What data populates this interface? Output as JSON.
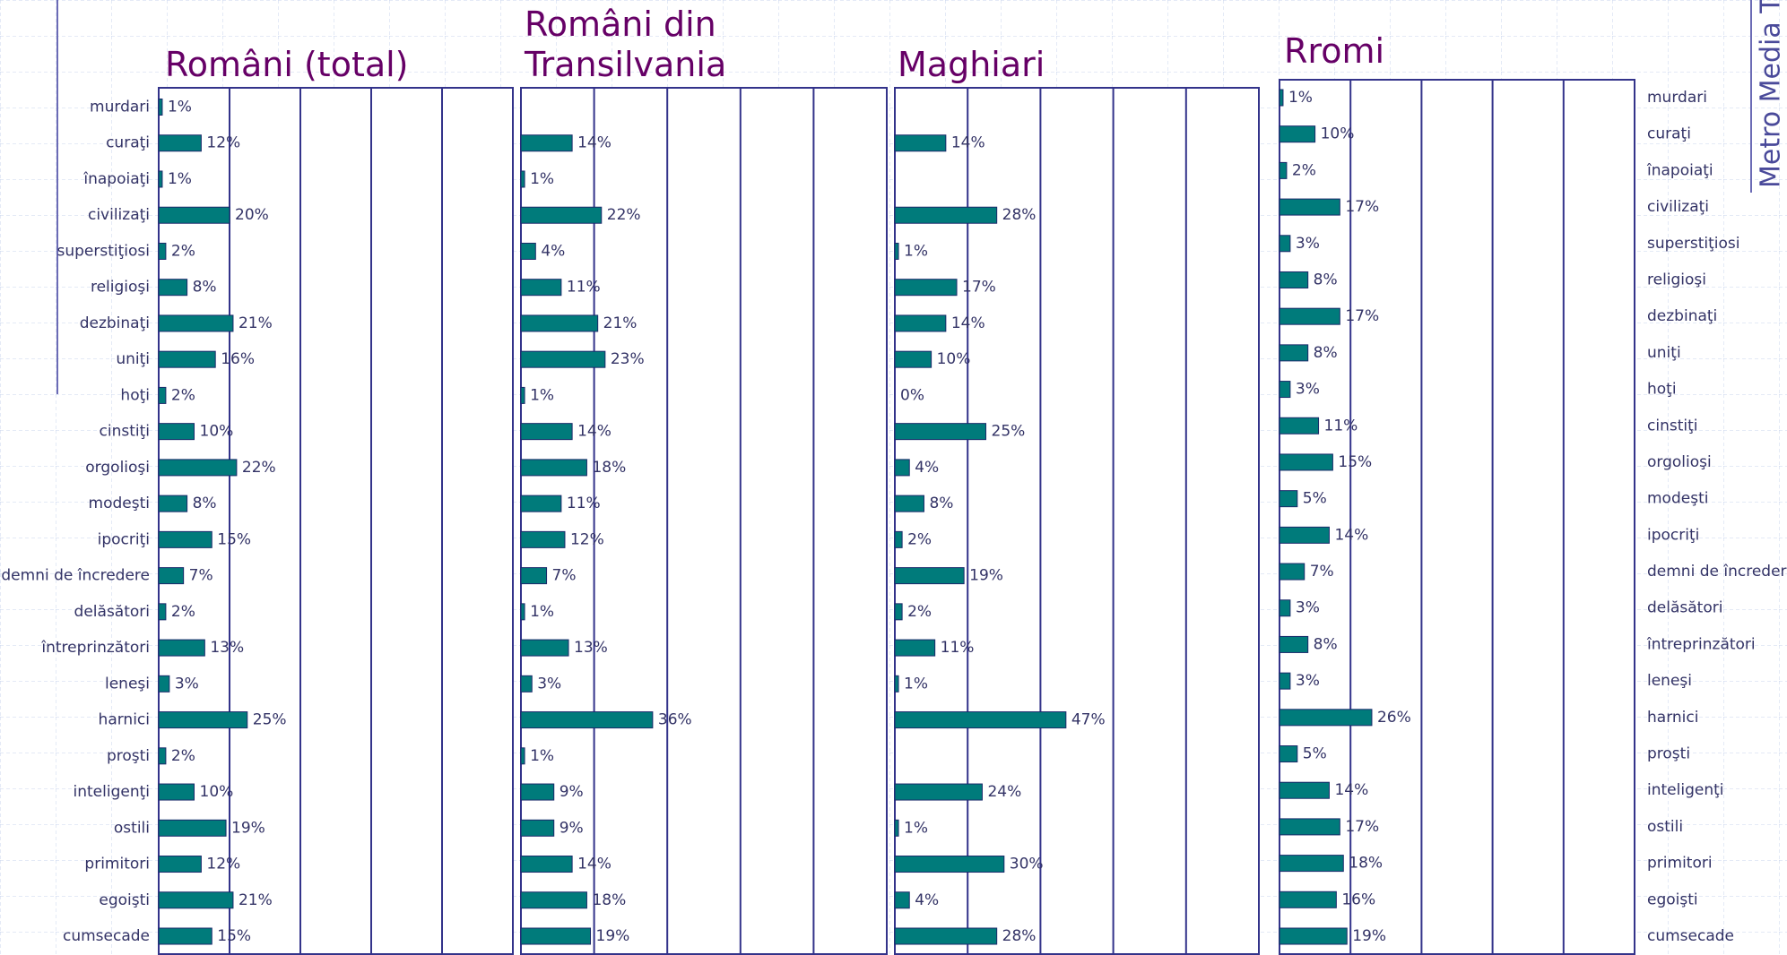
{
  "side_text": "Metro Media Transilvania",
  "chart_data": [
    {
      "type": "bar",
      "orientation": "horizontal",
      "title": "Români (total)",
      "category_label_side": "left",
      "color": "#007b7b",
      "categories": [
        "murdari",
        "curaţi",
        "înapoiaţi",
        "civilizaţi",
        "superstiţiosi",
        "religioşi",
        "dezbinaţi",
        "uniţi",
        "hoţi",
        "cinstiţi",
        "orgolioşi",
        "modeşti",
        "ipocriţi",
        "demni de încredere",
        "delăsători",
        "întreprinzători",
        "leneşi",
        "harnici",
        "proşti",
        "inteligenţi",
        "ostili",
        "primitori",
        "egoişti",
        "cumsecade"
      ],
      "values": [
        1,
        12,
        1,
        20,
        2,
        8,
        21,
        16,
        2,
        10,
        22,
        8,
        15,
        7,
        2,
        13,
        3,
        25,
        2,
        10,
        19,
        12,
        21,
        15
      ],
      "value_labels": [
        "1%",
        "12%",
        "1%",
        "20%",
        "2%",
        "8%",
        "21%",
        "16%",
        "2%",
        "10%",
        "22%",
        "8%",
        "15%",
        "7%",
        "2%",
        "13%",
        "3%",
        "25%",
        "2%",
        "10%",
        "19%",
        "12%",
        "21%",
        "15%"
      ],
      "xlim": [
        0,
        100
      ],
      "xticks": [
        0,
        20,
        40,
        60,
        80,
        100
      ],
      "grid": true
    },
    {
      "type": "bar",
      "orientation": "horizontal",
      "title": "Români din Transilvania",
      "color": "#007b7b",
      "values": [
        null,
        14,
        1,
        22,
        4,
        11,
        21,
        23,
        1,
        14,
        18,
        11,
        12,
        7,
        1,
        13,
        3,
        36,
        1,
        9,
        9,
        14,
        18,
        19
      ],
      "value_labels": [
        null,
        "14%",
        "1%",
        "22%",
        "4%",
        "11%",
        "21%",
        "23%",
        "1%",
        "14%",
        "18%",
        "11%",
        "12%",
        "7%",
        "1%",
        "13%",
        "3%",
        "36%",
        "1%",
        "9%",
        "9%",
        "14%",
        "18%",
        "19%"
      ],
      "xlim": [
        0,
        100
      ],
      "xticks": [
        0,
        20,
        40,
        60,
        80,
        100
      ],
      "grid": true
    },
    {
      "type": "bar",
      "orientation": "horizontal",
      "title": "Maghiari",
      "color": "#007b7b",
      "values": [
        null,
        14,
        null,
        28,
        1,
        17,
        14,
        10,
        0,
        25,
        4,
        8,
        2,
        19,
        2,
        11,
        1,
        47,
        null,
        24,
        1,
        30,
        4,
        28
      ],
      "value_labels": [
        null,
        "14%",
        null,
        "28%",
        "1%",
        "17%",
        "14%",
        "10%",
        "0%",
        "25%",
        "4%",
        "8%",
        "2%",
        "19%",
        "2%",
        "11%",
        "1%",
        "47%",
        null,
        "24%",
        "1%",
        "30%",
        "4%",
        "28%"
      ],
      "xlim": [
        0,
        100
      ],
      "xticks": [
        0,
        20,
        40,
        60,
        80,
        100
      ],
      "grid": true
    },
    {
      "type": "bar",
      "orientation": "horizontal",
      "title": "Rromi",
      "category_label_side": "right",
      "color": "#007b7b",
      "categories": [
        "murdari",
        "curaţi",
        "înapoiaţi",
        "civilizaţi",
        "superstiţiosi",
        "religioşi",
        "dezbinaţi",
        "uniţi",
        "hoţi",
        "cinstiţi",
        "orgolioşi",
        "modeşti",
        "ipocriţi",
        "demni de încredere",
        "delăsători",
        "întreprinzători",
        "leneşi",
        "harnici",
        "proşti",
        "inteligenţi",
        "ostili",
        "primitori",
        "egoişti",
        "cumsecade"
      ],
      "values": [
        1,
        10,
        2,
        17,
        3,
        8,
        17,
        8,
        3,
        11,
        15,
        5,
        14,
        7,
        3,
        8,
        3,
        26,
        5,
        14,
        17,
        18,
        16,
        19
      ],
      "value_labels": [
        "1%",
        "10%",
        "2%",
        "17%",
        "3%",
        "8%",
        "17%",
        "8%",
        "3%",
        "11%",
        "15%",
        "5%",
        "14%",
        "7%",
        "3%",
        "8%",
        "3%",
        "26%",
        "5%",
        "14%",
        "17%",
        "18%",
        "16%",
        "19%"
      ],
      "xlim": [
        0,
        100
      ],
      "xticks": [
        0,
        20,
        40,
        60,
        80,
        100
      ],
      "grid": true
    }
  ]
}
